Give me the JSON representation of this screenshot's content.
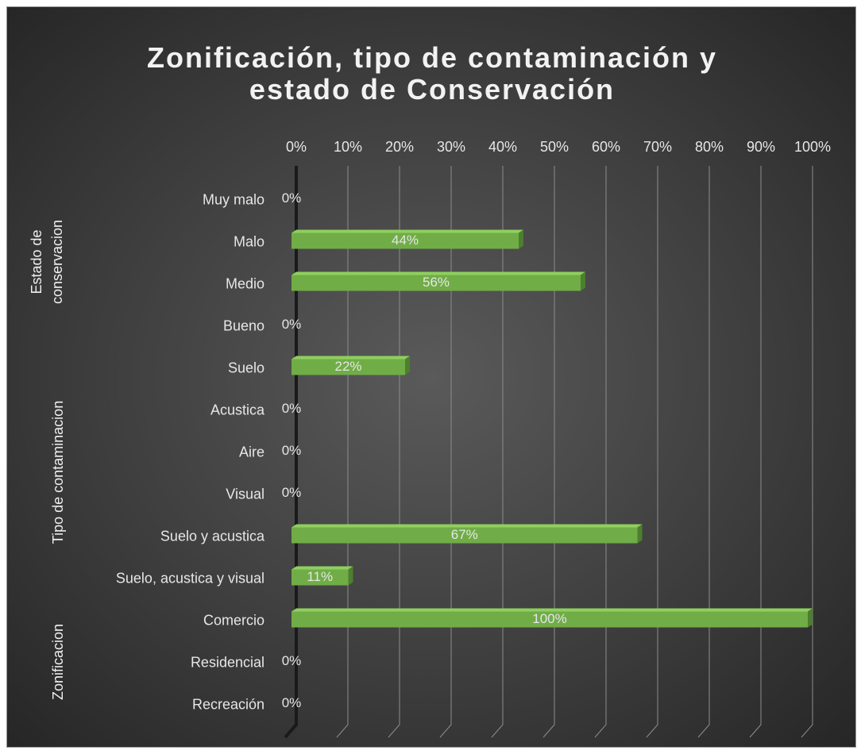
{
  "chart_data": {
    "type": "bar",
    "orientation": "horizontal",
    "title": "Zonificación, tipo de contaminación y estado de Conservación",
    "groups": [
      {
        "name": "Estado de conservacion",
        "categories": [
          "Muy malo",
          "Malo",
          "Medio",
          "Bueno"
        ],
        "values": [
          0,
          44,
          56,
          0
        ],
        "value_labels": [
          "0%",
          "44%",
          "56%",
          "0%"
        ]
      },
      {
        "name": "Tipo de contaminacion",
        "categories": [
          "Suelo",
          "Acustica",
          "Aire",
          "Visual",
          "Suelo y acustica",
          "Suelo, acustica y visual"
        ],
        "values": [
          22,
          0,
          0,
          0,
          67,
          11
        ],
        "value_labels": [
          "22%",
          "0%",
          "0%",
          "0%",
          "67%",
          "11%"
        ]
      },
      {
        "name": "Zonificacion",
        "categories": [
          "Comercio",
          "Residencial",
          "Recreación"
        ],
        "values": [
          100,
          0,
          0
        ],
        "value_labels": [
          "100%",
          "0%",
          "0%"
        ]
      }
    ],
    "color": "#70ad47",
    "xlim": [
      0,
      100
    ],
    "xticks": [
      {
        "value": 0,
        "label": "0%"
      },
      {
        "value": 10,
        "label": "10%"
      },
      {
        "value": 20,
        "label": "20%"
      },
      {
        "value": 30,
        "label": "30%"
      },
      {
        "value": 40,
        "label": "40%"
      },
      {
        "value": 50,
        "label": "50%"
      },
      {
        "value": 60,
        "label": "60%"
      },
      {
        "value": 70,
        "label": "70%"
      },
      {
        "value": 80,
        "label": "80%"
      },
      {
        "value": 90,
        "label": "90%"
      },
      {
        "value": 100,
        "label": "100%"
      }
    ],
    "grid": true
  }
}
